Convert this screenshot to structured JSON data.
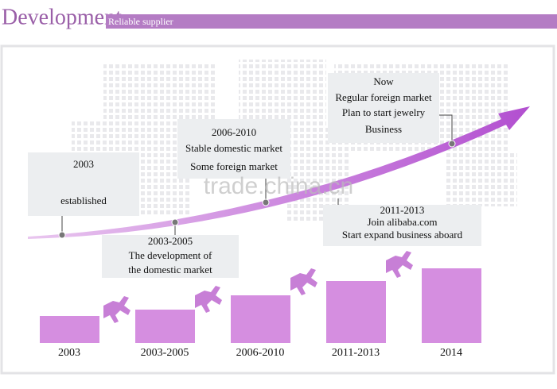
{
  "header": {
    "title": "Development",
    "subtitle": "Reliable supplier"
  },
  "milestones": [
    {
      "lines": [
        "2003",
        "established"
      ]
    },
    {
      "lines": [
        "2003-2005",
        "The development of",
        "the domestic market"
      ]
    },
    {
      "lines": [
        "2006-2010",
        "Stable domestic market",
        "Some foreign market"
      ]
    },
    {
      "lines": [
        "Now",
        "Regular foreign market",
        "Plan to start jewelry",
        "Business"
      ]
    },
    {
      "lines": [
        "2011-2013",
        "Join alibaba.com",
        "Start expand business aboard"
      ]
    }
  ],
  "steps": [
    "2003",
    "2003-2005",
    "2006-2010",
    "2011-2013",
    "2014"
  ],
  "watermark": "trade.china.cn"
}
